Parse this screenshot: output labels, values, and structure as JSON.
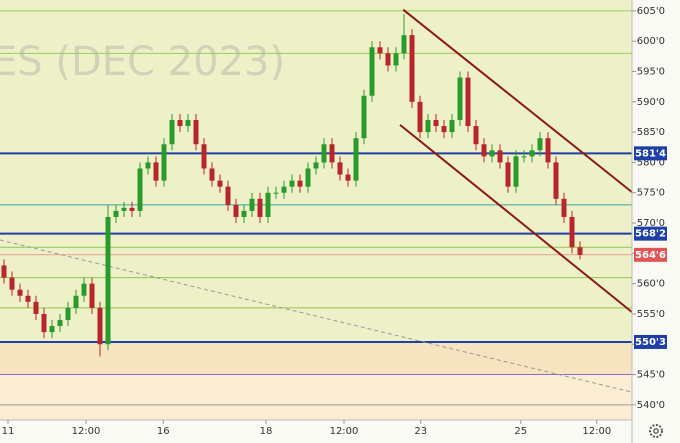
{
  "chart_data": {
    "type": "candlestick",
    "watermark": "ES (DEC 2023)",
    "xlim": [
      -0.5,
      78.5
    ],
    "ylim": [
      537.5,
      606.8
    ],
    "yticks": [
      {
        "value": 605,
        "label": "605'0"
      },
      {
        "value": 600,
        "label": "600'0"
      },
      {
        "value": 595,
        "label": "595'0"
      },
      {
        "value": 590,
        "label": "590'0"
      },
      {
        "value": 585,
        "label": "585'0"
      },
      {
        "value": 580,
        "label": "580'0"
      },
      {
        "value": 575,
        "label": "575'0"
      },
      {
        "value": 570,
        "label": "570'0"
      },
      {
        "value": 565,
        "label": "565'0"
      },
      {
        "value": 560,
        "label": "560'0"
      },
      {
        "value": 555,
        "label": "555'0"
      },
      {
        "value": 550,
        "label": "550'0"
      },
      {
        "value": 545,
        "label": "545'0"
      },
      {
        "value": 540,
        "label": "540'0"
      }
    ],
    "xticks": [
      {
        "value": 0.5,
        "label": "11"
      },
      {
        "value": 10.25,
        "label": "12:00"
      },
      {
        "value": 19.9,
        "label": "16"
      },
      {
        "value": 32.75,
        "label": "18"
      },
      {
        "value": 42.5,
        "label": "12:00"
      },
      {
        "value": 52.1,
        "label": "23"
      },
      {
        "value": 64.6,
        "label": "25"
      },
      {
        "value": 74.1,
        "label": "12:00"
      }
    ],
    "zones": [
      {
        "from": 606.8,
        "to": 550.375,
        "color": "#eef1c8"
      },
      {
        "from": 550.375,
        "to": 545,
        "color": "#f6e4c0"
      },
      {
        "from": 545,
        "to": 537.5,
        "color": "#fbedd2"
      }
    ],
    "up_color": "#2a9a2a",
    "down_color": "#b8262b",
    "open": [
      563,
      561,
      559,
      558,
      557,
      555,
      552,
      553,
      554,
      556,
      558,
      560,
      556,
      550,
      571,
      572,
      572.5,
      572,
      579,
      580,
      577,
      583,
      587,
      586,
      587,
      583,
      579,
      577,
      576,
      573,
      571,
      572,
      574,
      571,
      575,
      575,
      576,
      577,
      576,
      579,
      580,
      583,
      580,
      578,
      577,
      584,
      591,
      599,
      598,
      596,
      598,
      601,
      590,
      585,
      587,
      586,
      585,
      587,
      594,
      586,
      583,
      581,
      582,
      580,
      576,
      581,
      581,
      582,
      584,
      580,
      574,
      571,
      566
    ],
    "high": [
      564,
      562,
      560,
      559,
      558,
      556,
      554,
      555,
      557,
      559,
      561,
      561,
      557,
      573,
      573,
      573.5,
      573.5,
      580,
      581,
      581,
      584,
      588,
      588,
      588,
      588,
      584,
      580,
      578,
      577,
      574,
      573,
      575,
      575,
      576,
      576,
      577,
      578,
      578,
      580,
      581,
      584,
      584,
      581,
      579,
      585,
      592,
      600,
      600,
      599,
      599,
      604.5,
      602,
      591,
      588,
      588,
      587,
      588,
      595,
      595,
      587,
      584,
      583,
      583,
      581,
      582,
      582,
      583,
      585,
      585,
      581,
      575,
      572,
      567
    ],
    "low": [
      560,
      558,
      557,
      556,
      554,
      551,
      551,
      552,
      553,
      555,
      557,
      555,
      548,
      549,
      570,
      571,
      571,
      571,
      578,
      576,
      576,
      582,
      585,
      585,
      582,
      578,
      576,
      575,
      572,
      570,
      570,
      571,
      570,
      570,
      574,
      574,
      575,
      575,
      575,
      578,
      579,
      579,
      577,
      576,
      576,
      583,
      590,
      597,
      595,
      595,
      597,
      589,
      584,
      584,
      585,
      584,
      584,
      586,
      585,
      582,
      580,
      580,
      579,
      575,
      575,
      580,
      580,
      581,
      579,
      573,
      570,
      565,
      564
    ],
    "close": [
      561,
      559,
      558,
      557,
      555,
      552,
      553,
      554,
      556,
      558,
      560,
      556,
      550,
      571,
      572,
      572.5,
      572,
      579,
      580,
      577,
      583,
      587,
      586,
      587,
      583,
      579,
      577,
      576,
      573,
      571,
      572,
      574,
      571,
      575,
      575,
      576,
      577,
      576,
      579,
      580,
      583,
      580,
      578,
      577,
      584,
      591,
      599,
      598,
      596,
      598,
      601,
      590,
      585,
      587,
      586,
      585,
      587,
      594,
      586,
      583,
      581,
      582,
      580,
      576,
      581,
      581,
      582,
      584,
      580,
      574,
      571,
      566,
      564.75
    ],
    "levels": [
      {
        "value": 605,
        "color": "#9ccc5a",
        "width": 1
      },
      {
        "value": 598,
        "color": "#9ccc5a",
        "width": 1
      },
      {
        "value": 581.5,
        "label": "581'4",
        "color": "#1f3fa8",
        "width": 2
      },
      {
        "value": 573,
        "color": "#3aa6a0",
        "width": 1
      },
      {
        "value": 568.25,
        "label": "568'2",
        "color": "#1f3fa8",
        "width": 2
      },
      {
        "value": 566,
        "color": "#8cc850",
        "width": 1
      },
      {
        "value": 564.75,
        "label": "564'6",
        "color": "#e86a6a",
        "width": 0.6
      },
      {
        "value": 561,
        "color": "#8cc850",
        "width": 1
      },
      {
        "value": 556,
        "color": "#8cc850",
        "width": 1
      },
      {
        "value": 550.375,
        "label": "550'3",
        "color": "#1f3fa8",
        "width": 2
      },
      {
        "value": 545,
        "color": "#8a6ccf",
        "width": 1
      },
      {
        "value": 540,
        "color": "#9a9a9a",
        "width": 1
      }
    ],
    "trendlines": [
      {
        "color": "#8b1a1a",
        "dashed": false,
        "x": [
          49.9,
          78.5
        ],
        "y": [
          605.2,
          575.1
        ]
      },
      {
        "color": "#8b1a1a",
        "dashed": false,
        "x": [
          49.5,
          78.5
        ],
        "y": [
          586.2,
          555.3
        ]
      },
      {
        "color": "#999999",
        "dashed": true,
        "x": [
          -0.5,
          78.5
        ],
        "y": [
          567.2,
          542.1
        ]
      }
    ]
  }
}
